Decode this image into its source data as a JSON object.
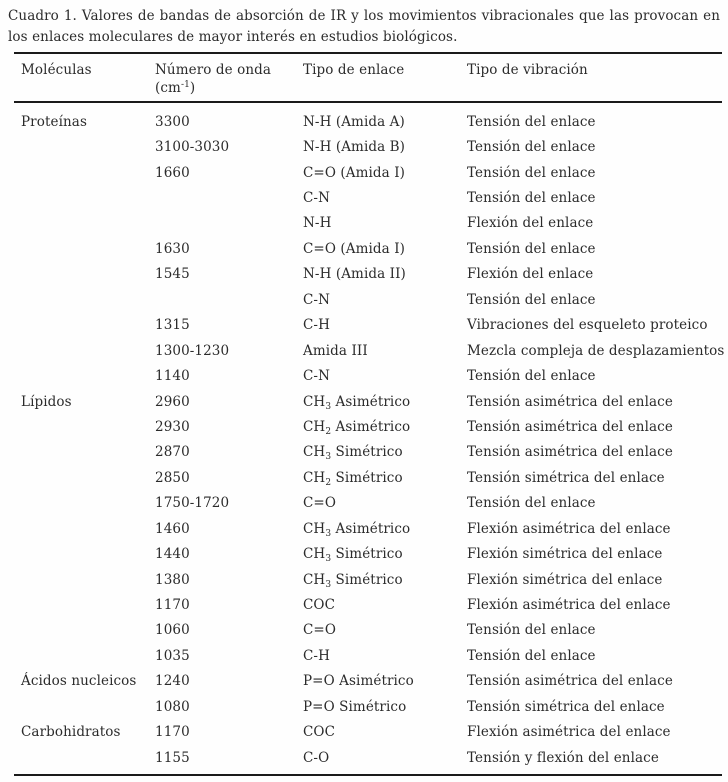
{
  "caption": "Cuadro 1. Valores de bandas de absorción de IR y los movimientos vibracionales que las provocan en los enlaces moleculares de mayor interés en estudios biológicos.",
  "table": {
    "header": {
      "molecules": "Moléculas",
      "wavenumber_line1": "Número de onda",
      "wavenumber_line2": [
        "(cm",
        {
          "sup": "-1"
        },
        ")"
      ],
      "bond": "Tipo de enlace",
      "vibration": "Tipo de vibración"
    },
    "rows": [
      {
        "molecule": "Proteínas",
        "wavenumber": "3300",
        "bond": "N-H (Amida A)",
        "vibration": "Tensión del enlace"
      },
      {
        "molecule": "",
        "wavenumber": "3100-3030",
        "bond": "N-H (Amida B)",
        "vibration": "Tensión del enlace"
      },
      {
        "molecule": "",
        "wavenumber": "1660",
        "bond": "C=O (Amida I)",
        "vibration": "Tensión del enlace"
      },
      {
        "molecule": "",
        "wavenumber": "",
        "bond": "C-N",
        "vibration": "Tensión del enlace"
      },
      {
        "molecule": "",
        "wavenumber": "",
        "bond": "N-H",
        "vibration": "Flexión del enlace"
      },
      {
        "molecule": "",
        "wavenumber": "1630",
        "bond": "C=O (Amida I)",
        "vibration": "Tensión del enlace"
      },
      {
        "molecule": "",
        "wavenumber": "1545",
        "bond": "N-H (Amida II)",
        "vibration": "Flexión del enlace"
      },
      {
        "molecule": "",
        "wavenumber": "",
        "bond": "C-N",
        "vibration": "Tensión del enlace"
      },
      {
        "molecule": "",
        "wavenumber": "1315",
        "bond": "C-H",
        "vibration": "Vibraciones del esqueleto proteico"
      },
      {
        "molecule": "",
        "wavenumber": "1300-1230",
        "bond": "Amida III",
        "vibration": "Mezcla compleja de desplazamientos"
      },
      {
        "molecule": "",
        "wavenumber": "1140",
        "bond": "C-N",
        "vibration": "Tensión del enlace"
      },
      {
        "molecule": "Lípidos",
        "wavenumber": "2960",
        "bond": [
          "CH",
          {
            "sub": "3"
          },
          " Asimétrico"
        ],
        "vibration": "Tensión asimétrica del enlace"
      },
      {
        "molecule": "",
        "wavenumber": "2930",
        "bond": [
          "CH",
          {
            "sub": "2"
          },
          " Asimétrico"
        ],
        "vibration": "Tensión asimétrica del enlace"
      },
      {
        "molecule": "",
        "wavenumber": "2870",
        "bond": [
          "CH",
          {
            "sub": "3"
          },
          " Simétrico"
        ],
        "vibration": "Tensión asimétrica del enlace"
      },
      {
        "molecule": "",
        "wavenumber": "2850",
        "bond": [
          "CH",
          {
            "sub": "2"
          },
          " Simétrico"
        ],
        "vibration": "Tensión simétrica del enlace"
      },
      {
        "molecule": "",
        "wavenumber": "1750-1720",
        "bond": "C=O",
        "vibration": "Tensión del enlace"
      },
      {
        "molecule": "",
        "wavenumber": "1460",
        "bond": [
          "CH",
          {
            "sub": "3"
          },
          " Asimétrico"
        ],
        "vibration": "Flexión asimétrica del enlace"
      },
      {
        "molecule": "",
        "wavenumber": "1440",
        "bond": [
          "CH",
          {
            "sub": "3"
          },
          " Simétrico"
        ],
        "vibration": "Flexión simétrica del enlace"
      },
      {
        "molecule": "",
        "wavenumber": "1380",
        "bond": [
          "CH",
          {
            "sub": "3"
          },
          " Simétrico"
        ],
        "vibration": "Flexión simétrica del enlace"
      },
      {
        "molecule": "",
        "wavenumber": "1170",
        "bond": "COC",
        "vibration": "Flexión asimétrica del enlace"
      },
      {
        "molecule": "",
        "wavenumber": "1060",
        "bond": "C=O",
        "vibration": "Tensión del enlace"
      },
      {
        "molecule": "",
        "wavenumber": "1035",
        "bond": "C-H",
        "vibration": "Tensión del enlace"
      },
      {
        "molecule": "Ácidos nucleicos",
        "wavenumber": "1240",
        "bond": "P=O Asimétrico",
        "vibration": "Tensión asimétrica del enlace"
      },
      {
        "molecule": "",
        "wavenumber": "1080",
        "bond": "P=O Simétrico",
        "vibration": "Tensión simétrica del enlace"
      },
      {
        "molecule": "Carbohidratos",
        "wavenumber": "1170",
        "bond": "COC",
        "vibration": "Flexión asimétrica del enlace"
      },
      {
        "molecule": "",
        "wavenumber": "1155",
        "bond": "C-O",
        "vibration": "Tensión y flexión del enlace"
      }
    ]
  },
  "colors": {
    "text": "#2b2b2b",
    "rule": "#1a1a1a",
    "background": "#fefefe"
  }
}
